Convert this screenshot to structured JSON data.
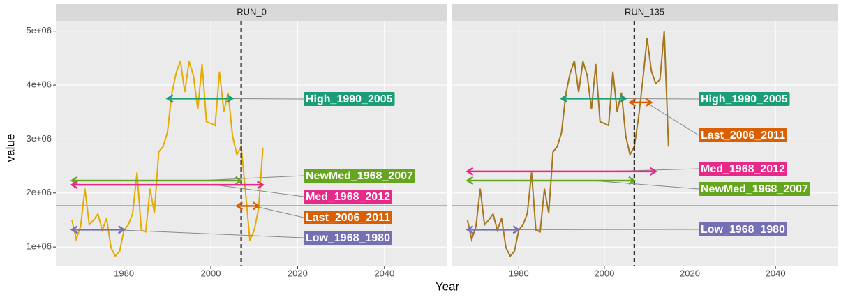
{
  "chart_data": {
    "type": "line",
    "x_label": "Year",
    "y_label": "value",
    "xlim": [
      1964.3,
      2054.5
    ],
    "xticks": [
      1980,
      2000,
      2020,
      2040
    ],
    "ylim": [
      640000,
      5190000
    ],
    "yticks": [
      {
        "value": 1000000,
        "label": "1e+06"
      },
      {
        "value": 2000000,
        "label": "2e+06"
      },
      {
        "value": 3000000,
        "label": "3e+06"
      },
      {
        "value": 4000000,
        "label": "4e+06"
      },
      {
        "value": 5000000,
        "label": "5e+06"
      }
    ],
    "grid": true,
    "hline": {
      "value": 1763000,
      "color": "#ff0000"
    },
    "vline": {
      "value": 2007,
      "color": "#000000"
    },
    "panels": [
      {
        "title": "RUN_0",
        "color": "#e6ab02",
        "x": [
          1968,
          1969,
          1970,
          1971,
          1972,
          1973,
          1974,
          1975,
          1976,
          1977,
          1978,
          1979,
          1980,
          1981,
          1982,
          1983,
          1984,
          1985,
          1986,
          1987,
          1988,
          1989,
          1990,
          1991,
          1992,
          1993,
          1994,
          1995,
          1996,
          1997,
          1998,
          1999,
          2000,
          2001,
          2002,
          2003,
          2004,
          2005,
          2006,
          2007,
          2008,
          2009,
          2010,
          2011,
          2012
        ],
        "values": [
          1500000,
          1140000,
          1380000,
          2080000,
          1410000,
          1500000,
          1610000,
          1310000,
          1530000,
          990000,
          830000,
          920000,
          1310000,
          1410000,
          1620000,
          2380000,
          1310000,
          1280000,
          2080000,
          1630000,
          2760000,
          2860000,
          3120000,
          3830000,
          4220000,
          4450000,
          3870000,
          4440000,
          4180000,
          3550000,
          4390000,
          3320000,
          3290000,
          3250000,
          4250000,
          3510000,
          3860000,
          3060000,
          2710000,
          2860000,
          2020000,
          1120000,
          1310000,
          1700000,
          2840000
        ],
        "periods": [
          {
            "label": "High_1990_2005",
            "start": 1990,
            "end": 2005,
            "value": 3750000,
            "color": "#1b9e77"
          },
          {
            "label": "NewMed_1968_2007",
            "start": 1968,
            "end": 2007,
            "value": 2230000,
            "color": "#66a61e"
          },
          {
            "label": "Med_1968_2012",
            "start": 1968,
            "end": 2012,
            "value": 2150000,
            "color": "#e7298a"
          },
          {
            "label": "Last_2006_2011",
            "start": 2006,
            "end": 2011,
            "value": 1760000,
            "color": "#d95f02"
          },
          {
            "label": "Low_1968_1980",
            "start": 1968,
            "end": 1980,
            "value": 1320000,
            "color": "#7570b3"
          }
        ]
      },
      {
        "title": "RUN_135",
        "color": "#a6761d",
        "x": [
          1968,
          1969,
          1970,
          1971,
          1972,
          1973,
          1974,
          1975,
          1976,
          1977,
          1978,
          1979,
          1980,
          1981,
          1982,
          1983,
          1984,
          1985,
          1986,
          1987,
          1988,
          1989,
          1990,
          1991,
          1992,
          1993,
          1994,
          1995,
          1996,
          1997,
          1998,
          1999,
          2000,
          2001,
          2002,
          2003,
          2004,
          2005,
          2006,
          2007,
          2008,
          2009,
          2010,
          2011,
          2012,
          2013,
          2014,
          2015
        ],
        "values": [
          1500000,
          1140000,
          1380000,
          2080000,
          1410000,
          1500000,
          1610000,
          1310000,
          1530000,
          990000,
          830000,
          920000,
          1310000,
          1410000,
          1620000,
          2380000,
          1310000,
          1280000,
          2080000,
          1630000,
          2760000,
          2860000,
          3120000,
          3830000,
          4220000,
          4450000,
          3870000,
          4440000,
          4180000,
          3550000,
          4390000,
          3320000,
          3290000,
          3250000,
          4250000,
          3510000,
          3860000,
          3060000,
          2710000,
          2860000,
          3400000,
          4100000,
          4870000,
          4260000,
          4030000,
          4100000,
          5000000,
          2860000
        ],
        "periods": [
          {
            "label": "High_1990_2005",
            "start": 1990,
            "end": 2005,
            "value": 3750000,
            "color": "#1b9e77"
          },
          {
            "label": "Last_2006_2011",
            "start": 2006,
            "end": 2011,
            "value": 3680000,
            "color": "#d95f02"
          },
          {
            "label": "Med_1968_2012",
            "start": 1968,
            "end": 2012,
            "value": 2400000,
            "color": "#e7298a"
          },
          {
            "label": "NewMed_1968_2007",
            "start": 1968,
            "end": 2007,
            "value": 2230000,
            "color": "#66a61e"
          },
          {
            "label": "Low_1968_1980",
            "start": 1968,
            "end": 1980,
            "value": 1320000,
            "color": "#7570b3"
          }
        ]
      }
    ]
  }
}
